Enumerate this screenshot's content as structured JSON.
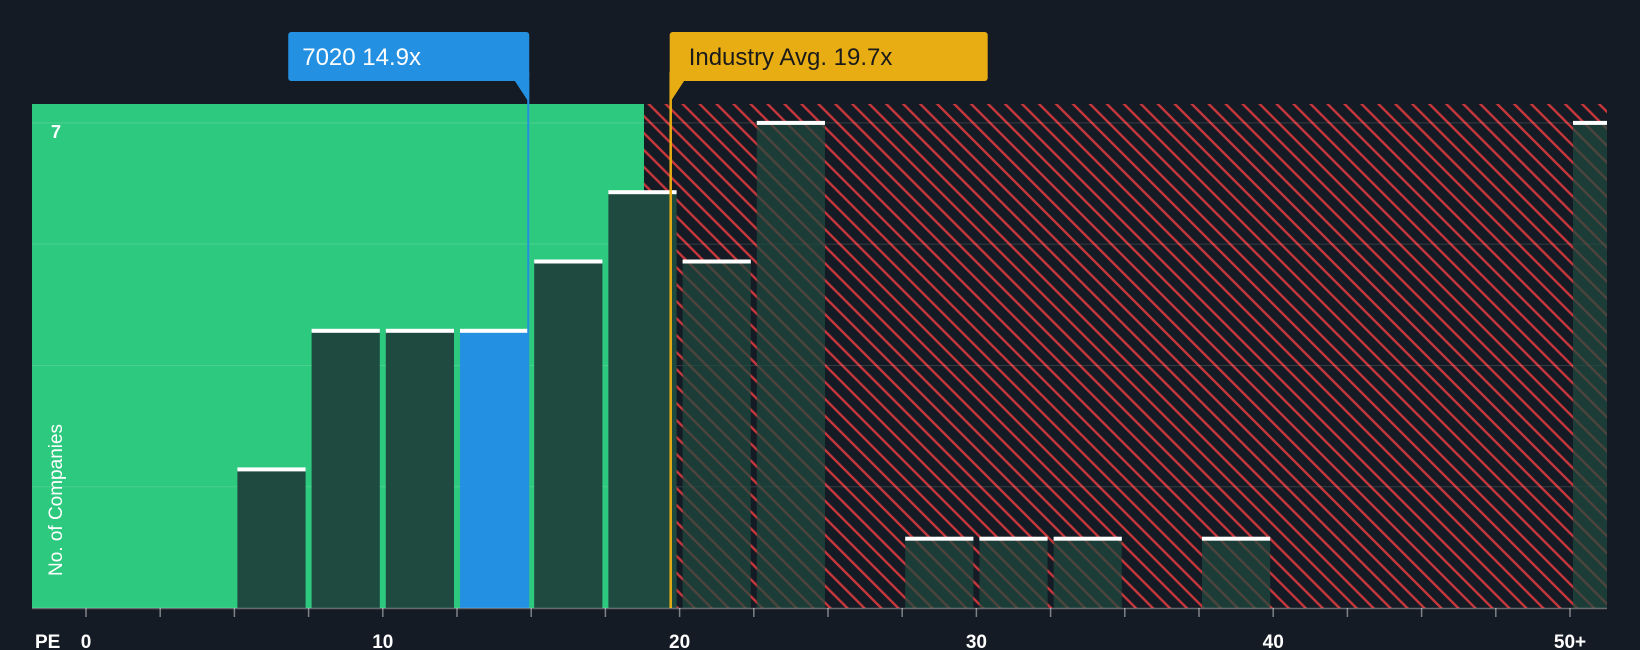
{
  "chart_data": {
    "type": "bar",
    "title": "",
    "xlabel": "PE",
    "ylabel": "No. of Companies",
    "x_tick_labels": [
      "0",
      "10",
      "20",
      "30",
      "40",
      "50+"
    ],
    "x_tick_values": [
      0,
      10,
      20,
      30,
      40,
      50
    ],
    "xlim": [
      -1.8,
      51.3
    ],
    "ylim": [
      0,
      7.25
    ],
    "y_tick_labels": [
      "7"
    ],
    "y_tick_values": [
      7
    ],
    "gridlines_y": [
      0,
      1.75,
      3.5,
      5.25,
      7
    ],
    "bin_width": 2.5,
    "bins": [
      {
        "x0": 5.0,
        "x1": 7.5,
        "value": 2,
        "highlight": false
      },
      {
        "x0": 7.5,
        "x1": 10.0,
        "value": 4,
        "highlight": false
      },
      {
        "x0": 10.0,
        "x1": 12.5,
        "value": 4,
        "highlight": false
      },
      {
        "x0": 12.5,
        "x1": 15.0,
        "value": 4,
        "highlight": true
      },
      {
        "x0": 15.0,
        "x1": 17.5,
        "value": 5,
        "highlight": false
      },
      {
        "x0": 17.5,
        "x1": 20.0,
        "value": 6,
        "highlight": false
      },
      {
        "x0": 20.0,
        "x1": 22.5,
        "value": 5,
        "highlight": false
      },
      {
        "x0": 22.5,
        "x1": 25.0,
        "value": 7,
        "highlight": false
      },
      {
        "x0": 27.5,
        "x1": 30.0,
        "value": 1,
        "highlight": false
      },
      {
        "x0": 30.0,
        "x1": 32.5,
        "value": 1,
        "highlight": false
      },
      {
        "x0": 32.5,
        "x1": 35.0,
        "value": 1,
        "highlight": false
      },
      {
        "x0": 37.5,
        "x1": 40.0,
        "value": 1,
        "highlight": false
      },
      {
        "x0": 50.0,
        "x1": 52.5,
        "value": 7,
        "highlight": false
      }
    ],
    "fair_zone_end": 18.8,
    "company": {
      "ticker": "7020",
      "value": 14.9,
      "label": "7020 14.9x"
    },
    "industry_avg": {
      "label": "Industry Avg. 19.7x",
      "value": 19.7
    },
    "colors": {
      "background": "#151b24",
      "fair_zone": "#2dc97e",
      "overvalued_stripe": "#c8373b",
      "bar": "#1e4a3f",
      "bar_highlight": "#2490e2",
      "bar_cap": "#ffffff",
      "company_marker": "#2490e2",
      "industry_marker": "#e9ad14",
      "axis_text": "#ffffff"
    }
  }
}
